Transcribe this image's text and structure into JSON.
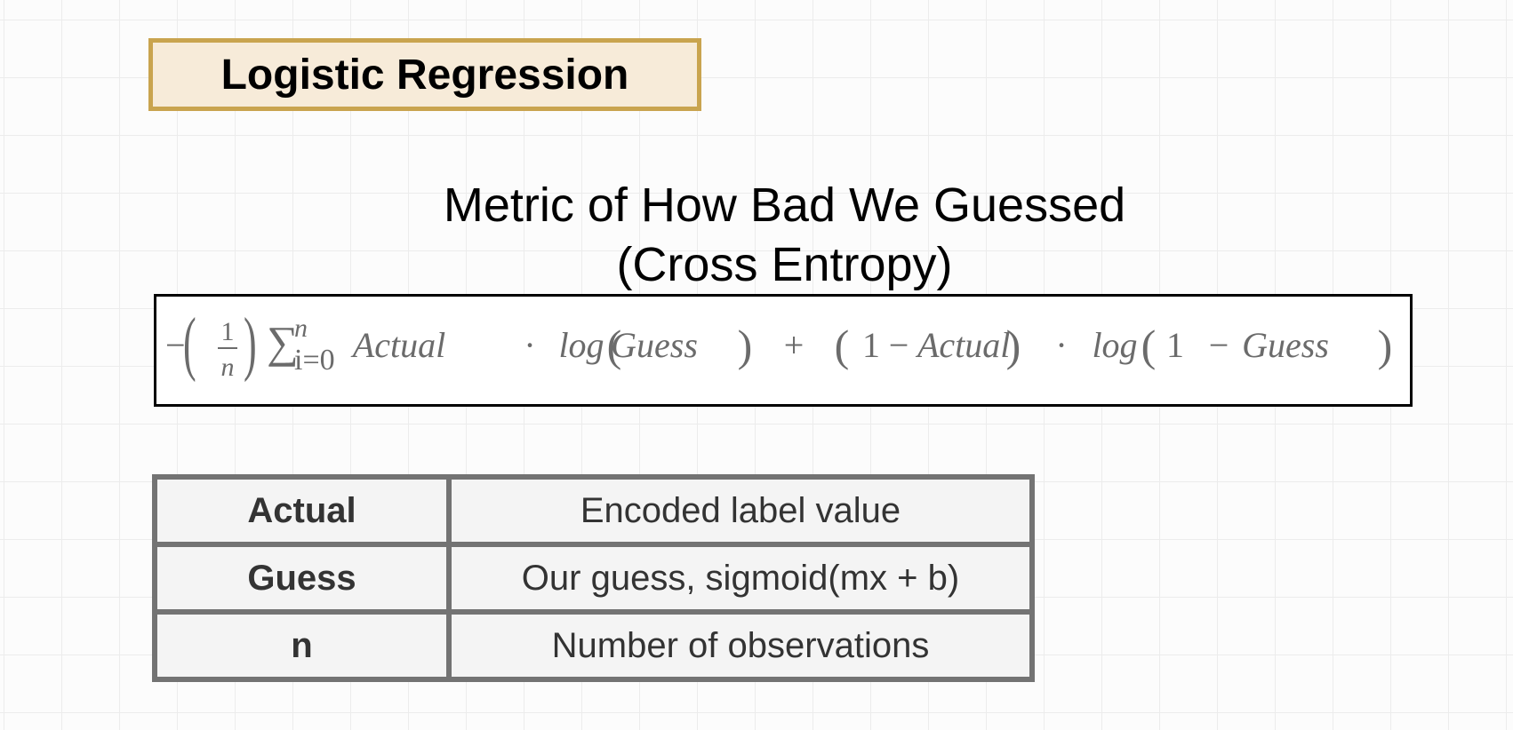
{
  "title": "Logistic Regression",
  "heading": {
    "line1": "Metric of How Bad We Guessed",
    "line2": "(Cross Entropy)"
  },
  "formula": {
    "minus": "−",
    "open_paren": "(",
    "numerator": "1",
    "denominator": "n",
    "close_paren": ")",
    "sigma": "∑",
    "sum_upper": "n",
    "sum_lower": "i=0",
    "actual_1": "Actual",
    "dot_1": "·",
    "log_1": "log",
    "log1_open": "(",
    "guess_1": "Guess",
    "log1_close": ")",
    "plus": "+",
    "term2_open": "(",
    "one_1": "1",
    "minus_2": "−",
    "actual_2": "Actual",
    "term2_close": ")",
    "dot_2": "·",
    "log_2": "log",
    "log2_open": "(",
    "one_2": "1",
    "minus_3": "−",
    "guess_2": "Guess",
    "log2_close": ")"
  },
  "definitions": [
    {
      "term": "Actual",
      "description": "Encoded label value"
    },
    {
      "term": "Guess",
      "description": "Our guess, sigmoid(mx + b)"
    },
    {
      "term": "n",
      "description": "Number of observations"
    }
  ],
  "colors": {
    "title_border": "#c9a44f",
    "title_fill": "#f7ebd9",
    "formula_text": "#6b6b6b",
    "table_border": "#737373",
    "table_fill": "#f4f4f4"
  }
}
